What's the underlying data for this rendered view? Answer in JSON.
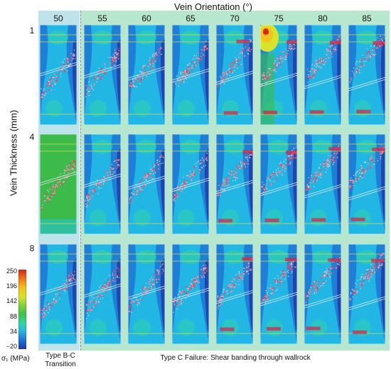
{
  "figure": {
    "title": "Vein Orientation (°)",
    "y_axis_label": "Vein Thickness (mm)",
    "column_labels": [
      "50",
      "55",
      "60",
      "65",
      "70",
      "75",
      "80",
      "85"
    ],
    "row_labels": [
      "1",
      "4",
      "8"
    ],
    "left_caption_line1": "Type B-C",
    "left_caption_line2": "Transition",
    "right_caption": "Type C Failure: Shear banding through wallrock"
  },
  "colorbar": {
    "title": "σ₁ (MPa)",
    "ticks": [
      "250",
      "196",
      "142",
      "88",
      "34",
      "−20"
    ],
    "colors": [
      "#1a3aa6",
      "#1e6fd0",
      "#25b3e6",
      "#2fd6a2",
      "#3fc24a",
      "#7fd23a",
      "#d8e42a",
      "#f5c21a",
      "#f07a14",
      "#d8261a"
    ]
  }
}
